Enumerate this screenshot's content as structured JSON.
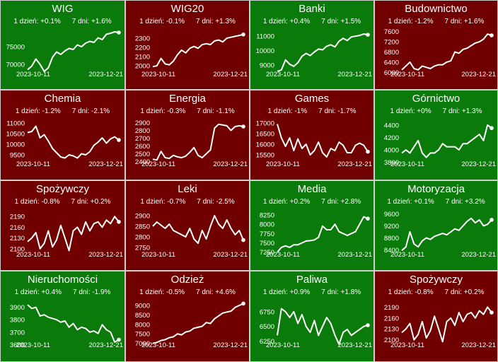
{
  "colors": {
    "up": "#0a7a0a",
    "down": "#700000",
    "line": "#ffffff"
  },
  "chart_data": [
    {
      "type": "line",
      "title": "WIG",
      "trend": "up",
      "day_change": "1 dzień: +0.1%",
      "week_change": "7 dni: +1.6%",
      "x_start": "2023-10-11",
      "x_end": "2023-12-21",
      "ylim": [
        67000,
        80000
      ],
      "yticks": [
        70000,
        75000
      ],
      "y": [
        68500,
        69500,
        71500,
        70000,
        68000,
        69000,
        72000,
        73500,
        72800,
        73800,
        74500,
        74200,
        75500,
        75000,
        76000,
        76500,
        76200,
        77500,
        77000,
        78500,
        78800,
        79200,
        79000
      ]
    },
    {
      "type": "line",
      "title": "WIG20",
      "trend": "down",
      "day_change": "1 dzień: -0.1%",
      "week_change": "7 dni: +1.3%",
      "x_start": "2023-10-11",
      "x_end": "2023-12-21",
      "ylim": [
        1900,
        2400
      ],
      "yticks": [
        2000,
        2100,
        2200,
        2300
      ],
      "y": [
        1990,
        2000,
        2080,
        2020,
        2010,
        2050,
        2120,
        2170,
        2140,
        2190,
        2210,
        2190,
        2230,
        2240,
        2230,
        2270,
        2280,
        2260,
        2300,
        2310,
        2320,
        2330,
        2340
      ]
    },
    {
      "type": "line",
      "title": "Banki",
      "trend": "up",
      "day_change": "1 dzień: +0.4%",
      "week_change": "7 dni: +1.5%",
      "x_start": "2023-10-11",
      "x_end": "2023-12-21",
      "ylim": [
        8300,
        11500
      ],
      "yticks": [
        9000,
        10000,
        11000
      ],
      "y": [
        8550,
        8650,
        9350,
        9050,
        8900,
        9150,
        9600,
        9800,
        9650,
        9900,
        10100,
        10050,
        10300,
        10400,
        10250,
        10650,
        10850,
        10700,
        10950,
        11000,
        11050,
        11150,
        11100
      ]
    },
    {
      "type": "line",
      "title": "Budownictwo",
      "trend": "down",
      "day_change": "1 dzień: -1.2%",
      "week_change": "7 dni: +1.6%",
      "x_start": "2023-10-11",
      "x_end": "2023-12-21",
      "ylim": [
        5900,
        7700
      ],
      "yticks": [
        6000,
        6400,
        6800,
        7200,
        7600
      ],
      "y": [
        6100,
        6250,
        6400,
        6150,
        6100,
        6250,
        6200,
        6150,
        6250,
        6300,
        6300,
        6400,
        6450,
        6800,
        6750,
        6900,
        6950,
        7050,
        7150,
        7200,
        7300,
        7500,
        7450
      ]
    },
    {
      "type": "line",
      "title": "Chemia",
      "trend": "down",
      "day_change": "1 dzień: -1.2%",
      "week_change": "7 dni: -2.1%",
      "x_start": "2023-10-11",
      "x_end": "2023-12-21",
      "ylim": [
        9000,
        11200
      ],
      "yticks": [
        9500,
        10000,
        10500,
        11000
      ],
      "y": [
        10550,
        10600,
        10850,
        10300,
        10450,
        10150,
        9800,
        9600,
        9400,
        9350,
        9500,
        9450,
        9350,
        9550,
        9500,
        9650,
        9950,
        10100,
        10300,
        10050,
        10250,
        10350,
        10200
      ]
    },
    {
      "type": "line",
      "title": "Energia",
      "trend": "down",
      "day_change": "1 dzień: -0.3%",
      "week_change": "7 dni: -1.1%",
      "x_start": "2023-10-11",
      "x_end": "2023-12-21",
      "ylim": [
        2350,
        2950
      ],
      "yticks": [
        2400,
        2500,
        2600,
        2700,
        2800,
        2900
      ],
      "y": [
        2430,
        2420,
        2530,
        2450,
        2440,
        2480,
        2460,
        2450,
        2470,
        2520,
        2580,
        2480,
        2450,
        2500,
        2550,
        2830,
        2880,
        2870,
        2860,
        2800,
        2850,
        2860,
        2850
      ]
    },
    {
      "type": "line",
      "title": "Games",
      "trend": "down",
      "day_change": "1 dzień: -1%",
      "week_change": "7 dni: -1.7%",
      "x_start": "2023-10-11",
      "x_end": "2023-12-21",
      "ylim": [
        15000,
        17200
      ],
      "yticks": [
        15500,
        16000,
        16500,
        17000
      ],
      "y": [
        16950,
        16300,
        15900,
        16300,
        15700,
        16250,
        15800,
        16000,
        15500,
        15700,
        16100,
        15600,
        15400,
        15800,
        15700,
        16100,
        15950,
        15600,
        15600,
        15950,
        16050,
        15950,
        15650
      ]
    },
    {
      "type": "line",
      "title": "Górnictwo",
      "trend": "up",
      "day_change": "1 dzień: +0%",
      "week_change": "7 dni: +1.3%",
      "x_start": "2023-10-11",
      "x_end": "2023-12-21",
      "ylim": [
        3750,
        4500
      ],
      "yticks": [
        3800,
        4000,
        4200,
        4400
      ],
      "y": [
        3950,
        4000,
        3950,
        4050,
        4150,
        3950,
        3880,
        3950,
        3950,
        4000,
        4100,
        4050,
        4050,
        4050,
        4000,
        4100,
        4100,
        4150,
        4200,
        4250,
        4150,
        4400,
        4350
      ]
    },
    {
      "type": "line",
      "title": "Spożywczy",
      "trend": "down",
      "day_change": "1 dzień: -0.8%",
      "week_change": "7 dni: +0.2%",
      "x_start": "2023-10-11",
      "x_end": "2023-12-21",
      "ylim": [
        2080,
        2210
      ],
      "yticks": [
        2100,
        2130,
        2160,
        2190
      ],
      "y": [
        2120,
        2130,
        2145,
        2100,
        2115,
        2150,
        2105,
        2125,
        2165,
        2130,
        2095,
        2150,
        2160,
        2140,
        2175,
        2150,
        2170,
        2175,
        2160,
        2180,
        2170,
        2190,
        2175
      ]
    },
    {
      "type": "line",
      "title": "Leki",
      "trend": "down",
      "day_change": "1 dzień: -0.7%",
      "week_change": "7 dni: -2.5%",
      "x_start": "2023-10-11",
      "x_end": "2023-12-21",
      "ylim": [
        2710,
        2930
      ],
      "yticks": [
        2750,
        2800,
        2850,
        2900
      ],
      "y": [
        2850,
        2870,
        2855,
        2840,
        2860,
        2830,
        2820,
        2810,
        2800,
        2840,
        2790,
        2770,
        2830,
        2790,
        2850,
        2900,
        2860,
        2840,
        2880,
        2840,
        2810,
        2830,
        2785
      ]
    },
    {
      "type": "line",
      "title": "Media",
      "trend": "up",
      "day_change": "1 dzień: +0.2%",
      "week_change": "7 dni: +2.8%",
      "x_start": "2023-10-11",
      "x_end": "2023-12-21",
      "ylim": [
        7150,
        8400
      ],
      "yticks": [
        7250,
        7500,
        7750,
        8000,
        8250
      ],
      "y": [
        7250,
        7380,
        7420,
        7380,
        7450,
        7450,
        7500,
        7550,
        7560,
        7580,
        7650,
        7950,
        7850,
        7850,
        8000,
        7800,
        7750,
        7700,
        7750,
        7800,
        8000,
        8200,
        8150
      ]
    },
    {
      "type": "line",
      "title": "Motoryzacja",
      "trend": "up",
      "day_change": "1 dzień: +0.1%",
      "week_change": "7 dni: +3.2%",
      "x_start": "2023-10-11",
      "x_end": "2023-12-21",
      "ylim": [
        8200,
        9750
      ],
      "yticks": [
        8400,
        8800,
        9200,
        9600
      ],
      "y": [
        8380,
        8500,
        9000,
        8600,
        8500,
        8700,
        8800,
        8750,
        8850,
        8900,
        8950,
        8900,
        9000,
        9100,
        9050,
        9200,
        9350,
        9450,
        9300,
        9400,
        9200,
        9250,
        9400
      ]
    },
    {
      "type": "line",
      "title": "Nieruchomości",
      "trend": "up",
      "day_change": "1 dzień: +0.4%",
      "week_change": "7 dni: -1.9%",
      "x_start": "2023-10-11",
      "x_end": "2023-12-21",
      "ylim": [
        3580,
        3960
      ],
      "yticks": [
        3600,
        3700,
        3800,
        3900
      ],
      "y": [
        3920,
        3890,
        3900,
        3830,
        3840,
        3820,
        3810,
        3800,
        3780,
        3790,
        3740,
        3770,
        3720,
        3740,
        3730,
        3700,
        3710,
        3690,
        3760,
        3720,
        3700,
        3620,
        3640
      ]
    },
    {
      "type": "line",
      "title": "Odzież",
      "trend": "down",
      "day_change": "1 dzień: -0.5%",
      "week_change": "7 dni: +4.6%",
      "x_start": "2023-10-11",
      "x_end": "2023-12-21",
      "ylim": [
        6800,
        9300
      ],
      "yticks": [
        7000,
        7500,
        8000,
        8500,
        9000
      ],
      "y": [
        7000,
        7050,
        7150,
        7200,
        7300,
        7350,
        7500,
        7450,
        7600,
        7650,
        7800,
        7850,
        7900,
        8100,
        8050,
        8300,
        8450,
        8600,
        8650,
        8700,
        8900,
        9000,
        9100
      ]
    },
    {
      "type": "line",
      "title": "Paliwa",
      "trend": "up",
      "day_change": "1 dzień: +0.9%",
      "week_change": "7 dni: +1.8%",
      "x_start": "2023-10-11",
      "x_end": "2023-12-21",
      "ylim": [
        6150,
        6950
      ],
      "yticks": [
        6250,
        6500,
        6750
      ],
      "y": [
        6350,
        6800,
        6750,
        6650,
        6750,
        6550,
        6700,
        6500,
        6400,
        6600,
        6350,
        6500,
        6650,
        6550,
        6350,
        6200,
        6400,
        6450,
        6350,
        6400,
        6450,
        6500,
        6520
      ]
    },
    {
      "type": "line",
      "title": "Spożywczy",
      "trend": "down",
      "day_change": "1 dzień: -0.8%",
      "week_change": "7 dni: +0.2%",
      "x_start": "2023-10-11",
      "x_end": "2023-12-21",
      "ylim": [
        2080,
        2210
      ],
      "yticks": [
        2100,
        2130,
        2160,
        2190
      ],
      "y": [
        2120,
        2130,
        2145,
        2100,
        2115,
        2150,
        2105,
        2125,
        2165,
        2130,
        2095,
        2150,
        2160,
        2140,
        2175,
        2150,
        2170,
        2175,
        2160,
        2180,
        2170,
        2190,
        2175
      ]
    }
  ]
}
